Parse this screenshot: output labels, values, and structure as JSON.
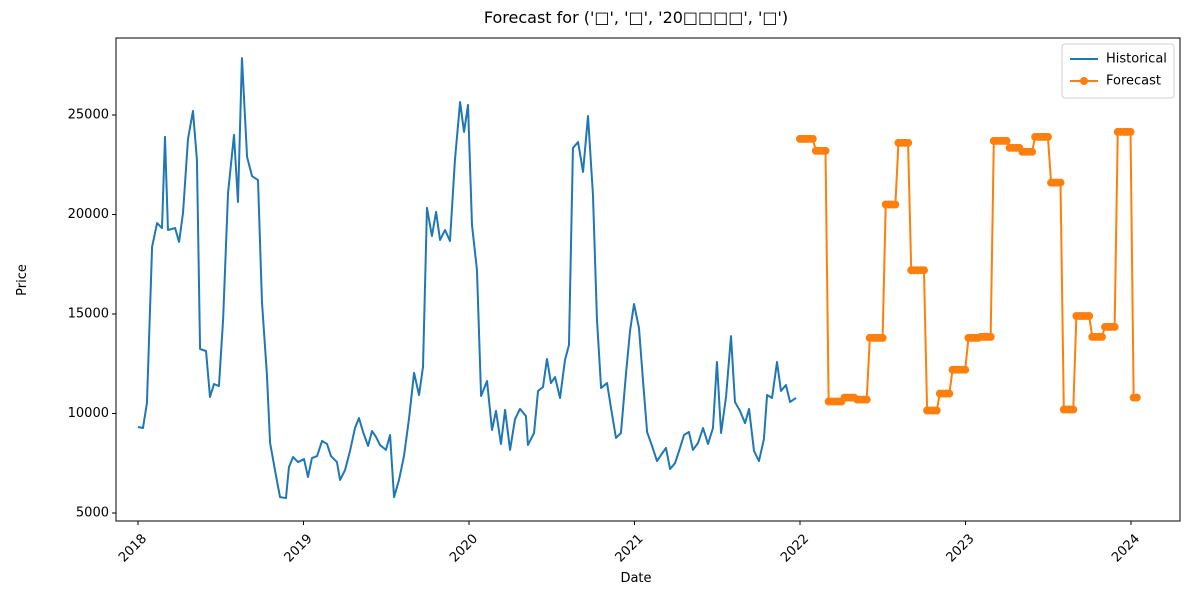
{
  "chart_data": {
    "type": "line",
    "title": "Forecast for ('□', '□', '20□□□□', '□')",
    "x_label": "Date",
    "y_label": "Price",
    "xlim": [
      2017.867,
      2024.296
    ],
    "ylim": [
      4598,
      28869
    ],
    "xticks": [
      2018,
      2019,
      2020,
      2021,
      2022,
      2023,
      2024
    ],
    "yticks": [
      5000,
      10000,
      15000,
      20000,
      25000
    ],
    "legend": "upper right",
    "series": [
      {
        "name": "Historical",
        "color": "#1f77b4",
        "marker": false,
        "x": [
          2018.0,
          2018.03,
          2018.054,
          2018.085,
          2018.115,
          2018.145,
          2018.163,
          2018.181,
          2018.224,
          2018.248,
          2018.272,
          2018.302,
          2018.332,
          2018.356,
          2018.375,
          2018.411,
          2018.435,
          2018.459,
          2018.489,
          2018.514,
          2018.544,
          2018.58,
          2018.604,
          2018.628,
          2018.659,
          2018.689,
          2018.725,
          2018.749,
          2018.779,
          2018.798,
          2018.834,
          2018.858,
          2018.894,
          2018.912,
          2018.937,
          2018.967,
          2019.003,
          2019.027,
          2019.051,
          2019.082,
          2019.112,
          2019.142,
          2019.166,
          2019.202,
          2019.221,
          2019.251,
          2019.281,
          2019.311,
          2019.335,
          2019.36,
          2019.39,
          2019.414,
          2019.438,
          2019.462,
          2019.498,
          2019.523,
          2019.547,
          2019.577,
          2019.607,
          2019.637,
          2019.668,
          2019.698,
          2019.722,
          2019.746,
          2019.776,
          2019.801,
          2019.825,
          2019.855,
          2019.885,
          2019.915,
          2019.946,
          2019.97,
          2019.994,
          2020.018,
          2020.048,
          2020.073,
          2020.109,
          2020.139,
          2020.163,
          2020.193,
          2020.218,
          2020.248,
          2020.278,
          2020.308,
          2020.344,
          2020.356,
          2020.393,
          2020.417,
          2020.447,
          2020.471,
          2020.495,
          2020.52,
          2020.55,
          2020.58,
          2020.604,
          2020.628,
          2020.659,
          2020.689,
          2020.719,
          2020.749,
          2020.773,
          2020.798,
          2020.834,
          2020.858,
          2020.888,
          2020.918,
          2020.949,
          2020.973,
          2020.997,
          2021.027,
          2021.051,
          2021.076,
          2021.106,
          2021.136,
          2021.16,
          2021.19,
          2021.215,
          2021.245,
          2021.275,
          2021.299,
          2021.329,
          2021.353,
          2021.384,
          2021.414,
          2021.444,
          2021.474,
          2021.498,
          2021.523,
          2021.553,
          2021.583,
          2021.607,
          2021.637,
          2021.668,
          2021.692,
          2021.722,
          2021.752,
          2021.782,
          2021.801,
          2021.831,
          2021.861,
          2021.885,
          2021.915,
          2021.94,
          2021.976
        ],
        "values": [
          9320,
          9270,
          10530,
          18370,
          19570,
          19320,
          23900,
          19220,
          19320,
          18620,
          20080,
          23790,
          25200,
          22740,
          13240,
          13140,
          10830,
          11480,
          11380,
          14700,
          21080,
          24000,
          20630,
          27860,
          22890,
          21930,
          21730,
          15600,
          11930,
          8520,
          6860,
          5800,
          5750,
          7310,
          7810,
          7560,
          7710,
          6810,
          7760,
          7860,
          8620,
          8470,
          7860,
          7560,
          6660,
          7160,
          8120,
          9270,
          9770,
          9070,
          8370,
          9120,
          8820,
          8420,
          8170,
          8920,
          5800,
          6660,
          7860,
          9720,
          12040,
          10930,
          12340,
          20330,
          18920,
          20130,
          18720,
          19220,
          18670,
          22740,
          25650,
          24150,
          25500,
          19470,
          17210,
          10880,
          11630,
          9170,
          10130,
          8470,
          10180,
          8170,
          9720,
          10230,
          9870,
          8420,
          9020,
          11130,
          11330,
          12740,
          11530,
          11830,
          10780,
          12690,
          13440,
          23340,
          23640,
          22140,
          24950,
          20980,
          14750,
          11280,
          11530,
          10280,
          8770,
          9020,
          12040,
          14150,
          15500,
          14300,
          11680,
          9070,
          8370,
          7610,
          7910,
          8270,
          7210,
          7510,
          8270,
          8920,
          9070,
          8170,
          8520,
          9270,
          8470,
          9270,
          12590,
          9020,
          10830,
          13890,
          10580,
          10130,
          9520,
          10230,
          8120,
          7610,
          8720,
          10930,
          10780,
          12590,
          11130,
          11430,
          10580,
          10780
        ]
      },
      {
        "name": "Forecast",
        "color": "#ff7f0e",
        "marker": true,
        "x": [
          2022.0,
          2022.019,
          2022.038,
          2022.058,
          2022.077,
          2022.096,
          2022.115,
          2022.134,
          2022.154,
          2022.173,
          2022.192,
          2022.211,
          2022.23,
          2022.25,
          2022.269,
          2022.288,
          2022.307,
          2022.326,
          2022.346,
          2022.365,
          2022.384,
          2022.403,
          2022.422,
          2022.442,
          2022.461,
          2022.48,
          2022.499,
          2022.518,
          2022.538,
          2022.557,
          2022.576,
          2022.595,
          2022.614,
          2022.634,
          2022.653,
          2022.672,
          2022.691,
          2022.71,
          2022.73,
          2022.749,
          2022.768,
          2022.787,
          2022.806,
          2022.826,
          2022.845,
          2022.864,
          2022.883,
          2022.902,
          2022.922,
          2022.941,
          2022.96,
          2022.979,
          2022.998,
          2023.018,
          2023.037,
          2023.056,
          2023.075,
          2023.094,
          2023.114,
          2023.133,
          2023.152,
          2023.171,
          2023.19,
          2023.21,
          2023.229,
          2023.248,
          2023.267,
          2023.286,
          2023.306,
          2023.325,
          2023.344,
          2023.363,
          2023.382,
          2023.402,
          2023.421,
          2023.44,
          2023.459,
          2023.478,
          2023.498,
          2023.517,
          2023.536,
          2023.555,
          2023.574,
          2023.594,
          2023.613,
          2023.632,
          2023.651,
          2023.67,
          2023.69,
          2023.709,
          2023.728,
          2023.747,
          2023.766,
          2023.786,
          2023.805,
          2023.824,
          2023.843,
          2023.862,
          2023.882,
          2023.901,
          2023.92,
          2023.939,
          2023.958,
          2023.978,
          2023.997,
          2024.016,
          2024.035
        ],
        "values": [
          23800,
          23800,
          23800,
          23800,
          23800,
          23200,
          23200,
          23200,
          23200,
          10600,
          10600,
          10600,
          10600,
          10600,
          10800,
          10800,
          10800,
          10800,
          10700,
          10700,
          10700,
          10700,
          13800,
          13800,
          13800,
          13800,
          13800,
          20500,
          20500,
          20500,
          20500,
          23600,
          23600,
          23600,
          23600,
          17200,
          17200,
          17200,
          17200,
          17200,
          10150,
          10150,
          10150,
          10150,
          11000,
          11000,
          11000,
          11000,
          12200,
          12200,
          12200,
          12200,
          12200,
          13800,
          13800,
          13800,
          13800,
          13850,
          13850,
          13850,
          13850,
          23700,
          23700,
          23700,
          23700,
          23700,
          23350,
          23350,
          23350,
          23350,
          23150,
          23150,
          23150,
          23150,
          23900,
          23900,
          23900,
          23900,
          23900,
          21600,
          21600,
          21600,
          21600,
          10200,
          10200,
          10200,
          10200,
          14900,
          14900,
          14900,
          14900,
          14900,
          13850,
          13850,
          13850,
          13850,
          14350,
          14350,
          14350,
          14350,
          24150,
          24150,
          24150,
          24150,
          24150,
          10800,
          10800
        ]
      }
    ]
  }
}
